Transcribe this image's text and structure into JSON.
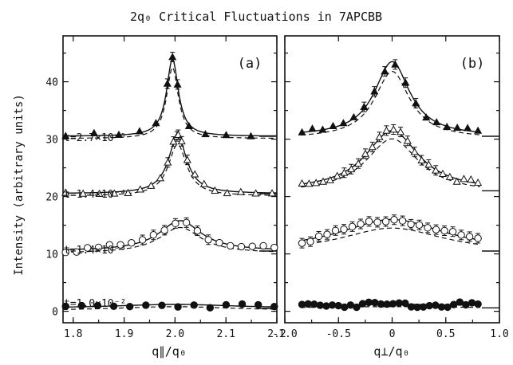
{
  "title": "2q₀ Critical Fluctuations in 7APCBB",
  "chart_data": [
    {
      "type": "scatter",
      "panel_label": "(a)",
      "xlabel": "q∥/q₀",
      "ylabel": "Intensity (arbitrary units)",
      "xlim": [
        1.78,
        2.2
      ],
      "ylim": [
        -2,
        48
      ],
      "xticks": [
        "1.8",
        "1.9",
        "2.0",
        "2.1",
        "2.2"
      ],
      "yticks": [
        "0",
        "10",
        "20",
        "30",
        "40"
      ],
      "series": [
        {
          "name": "t=2.7×10⁻⁵",
          "marker": "filled-triangle",
          "x0": 1.995,
          "baseline": 30.5,
          "peak": 44.0,
          "width": 0.014,
          "dash_factor": 0.92
        },
        {
          "name": "t=1.4×10⁻⁴",
          "marker": "open-triangle",
          "x0": 2.005,
          "baseline": 20.5,
          "peak": 30.5,
          "width": 0.022,
          "dash_factor": 0.9
        },
        {
          "name": "t=1.4×10⁻³",
          "marker": "open-circle",
          "x0": 2.01,
          "baseline": 10.5,
          "peak": 15.8,
          "width": 0.05,
          "dash_factor": 0.85
        },
        {
          "name": "t=1.0×10⁻²",
          "marker": "filled-circle",
          "x0": 2.0,
          "baseline": 0.5,
          "peak": 1.2,
          "width": 0.15,
          "dash_factor": 1.0
        }
      ]
    },
    {
      "type": "scatter",
      "panel_label": "(b)",
      "xlabel": "q⊥/q₀",
      "xlim": [
        -1.0,
        1.0
      ],
      "ylim": [
        -2,
        48
      ],
      "xticks": [
        "-1.0",
        "-0.5",
        "0",
        "0.5",
        "1.0"
      ],
      "series": [
        {
          "name": "t=2.7×10⁻⁵",
          "marker": "filled-triangle",
          "x0": 0.0,
          "baseline": 30.5,
          "peak": 43.5,
          "width": 0.2,
          "dash_factor": 0.9
        },
        {
          "name": "t=1.4×10⁻⁴",
          "marker": "open-triangle",
          "x0": 0.0,
          "baseline": 21.0,
          "peak": 31.5,
          "width": 0.3,
          "dash_factor": 0.9
        },
        {
          "name": "t=1.4×10⁻³",
          "marker": "open-circle",
          "x0": 0.0,
          "baseline": 10.5,
          "peak": 16.0,
          "width": 0.6,
          "dash_factor": 0.8
        },
        {
          "name": "t=1.0×10⁻²",
          "marker": "filled-circle",
          "x0": 0.0,
          "baseline": 0.6,
          "peak": 1.2,
          "width": 1.5,
          "dash_factor": 1.0
        }
      ]
    }
  ]
}
